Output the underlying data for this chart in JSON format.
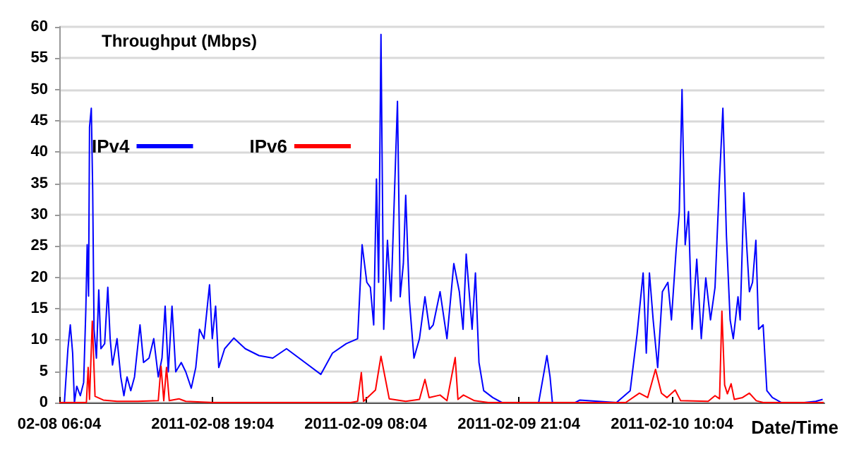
{
  "chart_data": {
    "type": "line",
    "ylabel": "Throughput (Mbps)",
    "xlabel": "Date/Time",
    "xlim": [
      "2011-02-08T06:04",
      "2011-02-10T23:00"
    ],
    "xticks": [
      {
        "value": "2011-02-08T06:04",
        "label": "02-08 06:04"
      },
      {
        "value": "2011-02-08T19:04",
        "label": "2011-02-08 19:04"
      },
      {
        "value": "2011-02-09T08:04",
        "label": "2011-02-09 08:04"
      },
      {
        "value": "2011-02-09T21:04",
        "label": "2011-02-09 21:04"
      },
      {
        "value": "2011-02-10T10:04",
        "label": "2011-02-10 10:04"
      }
    ],
    "ylim": [
      0,
      60
    ],
    "yticks": [
      0,
      5,
      10,
      15,
      20,
      25,
      30,
      35,
      40,
      45,
      50,
      55,
      60
    ],
    "grid": "y",
    "legend": "top left",
    "marker": "none",
    "line_style": "solid",
    "series": [
      {
        "name": "IPv4",
        "color": "#0000ff",
        "x": [
          "2011-02-08T06:30",
          "2011-02-08T06:48",
          "2011-02-08T07:00",
          "2011-02-08T07:12",
          "2011-02-08T07:21",
          "2011-02-08T07:33",
          "2011-02-08T07:51",
          "2011-02-08T08:08",
          "2011-02-08T08:19",
          "2011-02-08T08:26",
          "2011-02-08T08:33",
          "2011-02-08T08:38",
          "2011-02-08T08:47",
          "2011-02-08T08:54",
          "2011-02-08T09:01",
          "2011-02-08T09:13",
          "2011-02-08T09:25",
          "2011-02-08T09:36",
          "2011-02-08T09:55",
          "2011-02-08T10:11",
          "2011-02-08T10:23",
          "2011-02-08T10:35",
          "2011-02-08T10:58",
          "2011-02-08T11:17",
          "2011-02-08T11:33",
          "2011-02-08T11:49",
          "2011-02-08T12:08",
          "2011-02-08T12:27",
          "2011-02-08T12:55",
          "2011-02-08T13:13",
          "2011-02-08T13:41",
          "2011-02-08T14:05",
          "2011-02-08T14:28",
          "2011-02-08T14:47",
          "2011-02-08T15:03",
          "2011-02-08T15:19",
          "2011-02-08T15:38",
          "2011-02-08T15:57",
          "2011-02-08T16:25",
          "2011-02-08T16:48",
          "2011-02-08T17:16",
          "2011-02-08T17:39",
          "2011-02-08T17:58",
          "2011-02-08T18:21",
          "2011-02-08T18:49",
          "2011-02-08T19:03",
          "2011-02-08T19:20",
          "2011-02-08T19:36",
          "2011-02-08T20:06",
          "2011-02-08T20:53",
          "2011-02-08T21:51",
          "2011-02-08T23:01",
          "2011-02-09T00:11",
          "2011-02-09T01:21",
          "2011-02-09T02:55",
          "2011-02-09T04:16",
          "2011-02-09T05:15",
          "2011-02-09T06:25",
          "2011-02-09T07:23",
          "2011-02-09T07:46",
          "2011-02-09T08:10",
          "2011-02-09T08:28",
          "2011-02-09T08:45",
          "2011-02-09T08:59",
          "2011-02-09T09:10",
          "2011-02-09T09:22",
          "2011-02-09T09:36",
          "2011-02-09T09:55",
          "2011-02-09T10:13",
          "2011-02-09T10:30",
          "2011-02-09T10:46",
          "2011-02-09T11:00",
          "2011-02-09T11:16",
          "2011-02-09T11:28",
          "2011-02-09T11:47",
          "2011-02-09T12:10",
          "2011-02-09T12:38",
          "2011-02-09T13:06",
          "2011-02-09T13:29",
          "2011-02-09T13:48",
          "2011-02-09T14:23",
          "2011-02-09T14:58",
          "2011-02-09T15:33",
          "2011-02-09T16:01",
          "2011-02-09T16:20",
          "2011-02-09T16:36",
          "2011-02-09T17:06",
          "2011-02-09T17:23",
          "2011-02-09T17:41",
          "2011-02-09T18:05",
          "2011-02-09T18:51",
          "2011-02-09T19:38",
          "2011-02-09T22:45",
          "2011-02-09T23:08",
          "2011-02-09T23:27",
          "2011-02-09T23:43",
          "2011-02-09T23:55",
          "2011-02-10T01:51",
          "2011-02-10T02:15",
          "2011-02-10T05:21",
          "2011-02-10T06:31",
          "2011-02-10T07:06",
          "2011-02-10T07:37",
          "2011-02-10T07:53",
          "2011-02-10T08:09",
          "2011-02-10T08:28",
          "2011-02-10T08:51",
          "2011-02-10T09:15",
          "2011-02-10T09:43",
          "2011-02-10T10:01",
          "2011-02-10T10:25",
          "2011-02-10T10:41",
          "2011-02-10T10:55",
          "2011-02-10T11:11",
          "2011-02-10T11:28",
          "2011-02-10T11:46",
          "2011-02-10T12:10",
          "2011-02-10T12:33",
          "2011-02-10T12:56",
          "2011-02-10T13:20",
          "2011-02-10T13:43",
          "2011-02-10T14:06",
          "2011-02-10T14:23",
          "2011-02-10T14:41",
          "2011-02-10T15:00",
          "2011-02-10T15:16",
          "2011-02-10T15:40",
          "2011-02-10T15:51",
          "2011-02-10T16:10",
          "2011-02-10T16:24",
          "2011-02-10T16:38",
          "2011-02-10T16:54",
          "2011-02-10T17:11",
          "2011-02-10T17:25",
          "2011-02-10T17:48",
          "2011-02-10T18:07",
          "2011-02-10T18:35",
          "2011-02-10T19:21",
          "2011-02-10T21:18",
          "2011-02-10T22:16",
          "2011-02-10T22:51"
        ],
        "values": [
          0,
          8.6,
          12.4,
          7.9,
          0,
          2.6,
          1.1,
          3.2,
          14.7,
          25.2,
          17,
          44,
          47,
          34,
          11.7,
          7.1,
          18,
          8.6,
          9.4,
          18.4,
          10.2,
          6,
          10.2,
          4.1,
          1.1,
          4.1,
          1.9,
          4.1,
          12.4,
          6.4,
          7.1,
          10.2,
          4.1,
          7.1,
          15.4,
          4.9,
          15.4,
          4.9,
          6.4,
          4.9,
          2.3,
          5.6,
          11.7,
          10.2,
          18.8,
          10.2,
          15.4,
          5.6,
          8.6,
          10.3,
          8.6,
          7.5,
          7.1,
          8.6,
          6.4,
          4.5,
          7.9,
          9.4,
          10.2,
          25.2,
          19.2,
          18.4,
          12.4,
          35.7,
          19.2,
          58.8,
          11.7,
          25.9,
          16.2,
          32.7,
          48.1,
          16.9,
          22.2,
          33.1,
          16.2,
          7.1,
          10.2,
          16.9,
          11.7,
          12.4,
          17.7,
          10.2,
          22.2,
          17.7,
          11.7,
          23.7,
          11.7,
          20.7,
          6.4,
          1.9,
          0.8,
          0,
          0,
          4.1,
          7.5,
          4.1,
          0,
          0,
          0.4,
          0,
          1.9,
          10.9,
          20.7,
          7.9,
          20.7,
          13.2,
          5.6,
          17.7,
          19.2,
          13.2,
          24.4,
          30.5,
          50,
          25.2,
          30.5,
          11.7,
          22.9,
          10.2,
          19.9,
          13.2,
          18.4,
          35.7,
          47,
          26.7,
          13.2,
          10.2,
          16.9,
          13.2,
          33.5,
          25.2,
          17.7,
          19.2,
          25.9,
          11.7,
          12.4,
          1.9,
          0.8,
          0,
          0,
          0.2,
          0.5
        ]
      },
      {
        "name": "IPv6",
        "color": "#ff0000",
        "x": [
          "2011-02-08T06:04",
          "2011-02-08T08:22",
          "2011-02-08T08:31",
          "2011-02-08T08:38",
          "2011-02-08T08:52",
          "2011-02-08T09:06",
          "2011-02-08T09:48",
          "2011-02-08T10:58",
          "2011-02-08T12:43",
          "2011-02-08T14:28",
          "2011-02-08T14:42",
          "2011-02-08T14:56",
          "2011-02-08T15:10",
          "2011-02-08T15:24",
          "2011-02-08T16:13",
          "2011-02-08T16:48",
          "2011-02-08T19:08",
          "2011-02-09T06:48",
          "2011-02-09T07:23",
          "2011-02-09T07:42",
          "2011-02-09T07:53",
          "2011-02-09T08:54",
          "2011-02-09T09:22",
          "2011-02-09T09:43",
          "2011-02-09T10:04",
          "2011-02-09T11:28",
          "2011-02-09T12:38",
          "2011-02-09T13:06",
          "2011-02-09T13:27",
          "2011-02-09T14:23",
          "2011-02-09T14:58",
          "2011-02-09T15:40",
          "2011-02-09T15:54",
          "2011-02-09T16:22",
          "2011-02-09T17:18",
          "2011-02-09T18:28",
          "2011-02-10T06:08",
          "2011-02-10T07:18",
          "2011-02-10T08:00",
          "2011-02-10T08:40",
          "2011-02-10T09:10",
          "2011-02-10T09:38",
          "2011-02-10T10:20",
          "2011-02-10T10:48",
          "2011-02-10T13:08",
          "2011-02-10T13:43",
          "2011-02-10T14:06",
          "2011-02-10T14:18",
          "2011-02-10T14:32",
          "2011-02-10T14:46",
          "2011-02-10T15:05",
          "2011-02-10T15:21",
          "2011-02-10T16:03",
          "2011-02-10T16:38",
          "2011-02-10T17:13",
          "2011-02-10T17:48",
          "2011-02-10T22:56"
        ],
        "values": [
          0,
          0,
          5.6,
          0.5,
          13,
          1,
          0.4,
          0.2,
          0.2,
          0.3,
          5.8,
          0.3,
          5.6,
          0.3,
          0.6,
          0.2,
          0,
          0,
          0.2,
          4.8,
          0.2,
          2,
          7.4,
          4,
          0.6,
          0.2,
          0.5,
          3.7,
          0.8,
          1.2,
          0.3,
          7.2,
          0.5,
          1.2,
          0.3,
          0,
          0,
          1.5,
          0.8,
          5.3,
          1.5,
          0.8,
          2,
          0.3,
          0.2,
          1.1,
          0.6,
          14.6,
          2.8,
          1.4,
          3,
          0.5,
          0.8,
          1.5,
          0.3,
          0,
          0
        ]
      }
    ]
  }
}
